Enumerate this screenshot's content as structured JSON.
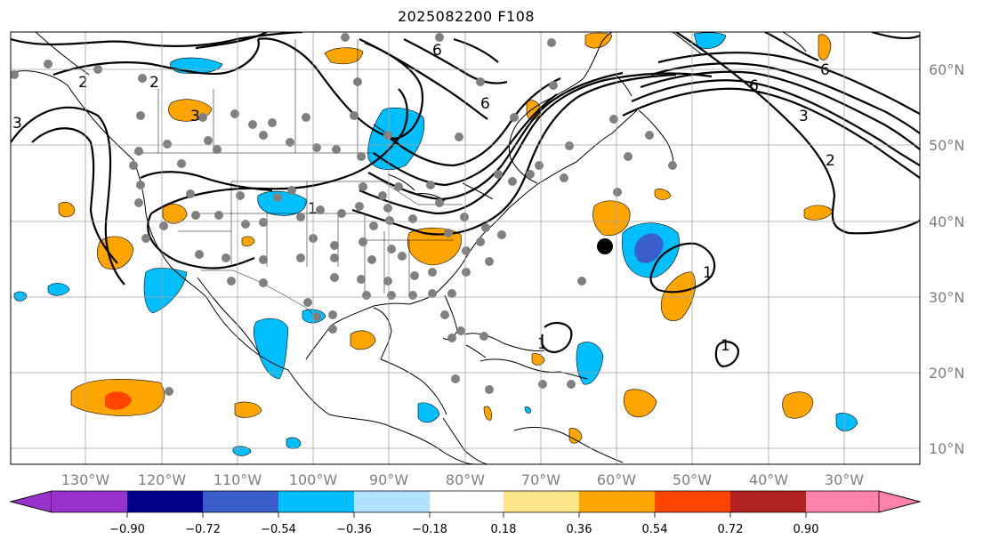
{
  "title": "2025082200 F108",
  "map": {
    "projection": "PlateCarree",
    "lon_range": [
      -138,
      -17
    ],
    "lat_range": [
      8,
      65
    ],
    "lon_ticks": [
      "130°W",
      "120°W",
      "110°W",
      "100°W",
      "90°W",
      "80°W",
      "70°W",
      "60°W",
      "50°W",
      "40°W",
      "30°W"
    ],
    "lat_ticks": [
      "60°N",
      "50°N",
      "40°N",
      "30°N",
      "20°N",
      "10°N"
    ],
    "grid": true,
    "storm_marker": {
      "lon": -60.5,
      "lat": 36.5,
      "color": "#000000"
    },
    "station_color": "#808080"
  },
  "contour_labels": [
    "3",
    "2",
    "2",
    "3",
    "6",
    "6",
    "1",
    "6",
    "3",
    "2",
    "1",
    "1",
    "1",
    "6"
  ],
  "colorbar": {
    "colors": [
      "#9932cc",
      "#00008b",
      "#3a5fcd",
      "#00bfff",
      "#b0e2ff",
      "#ffffff",
      "#ffffff",
      "#ffe58a",
      "#ffa500",
      "#ff4500",
      "#b22222",
      "#ff82ab"
    ],
    "ticks": [
      "−0.90",
      "−0.72",
      "−0.54",
      "−0.36",
      "−0.18",
      "0.18",
      "0.36",
      "0.54",
      "0.72",
      "0.90"
    ]
  }
}
